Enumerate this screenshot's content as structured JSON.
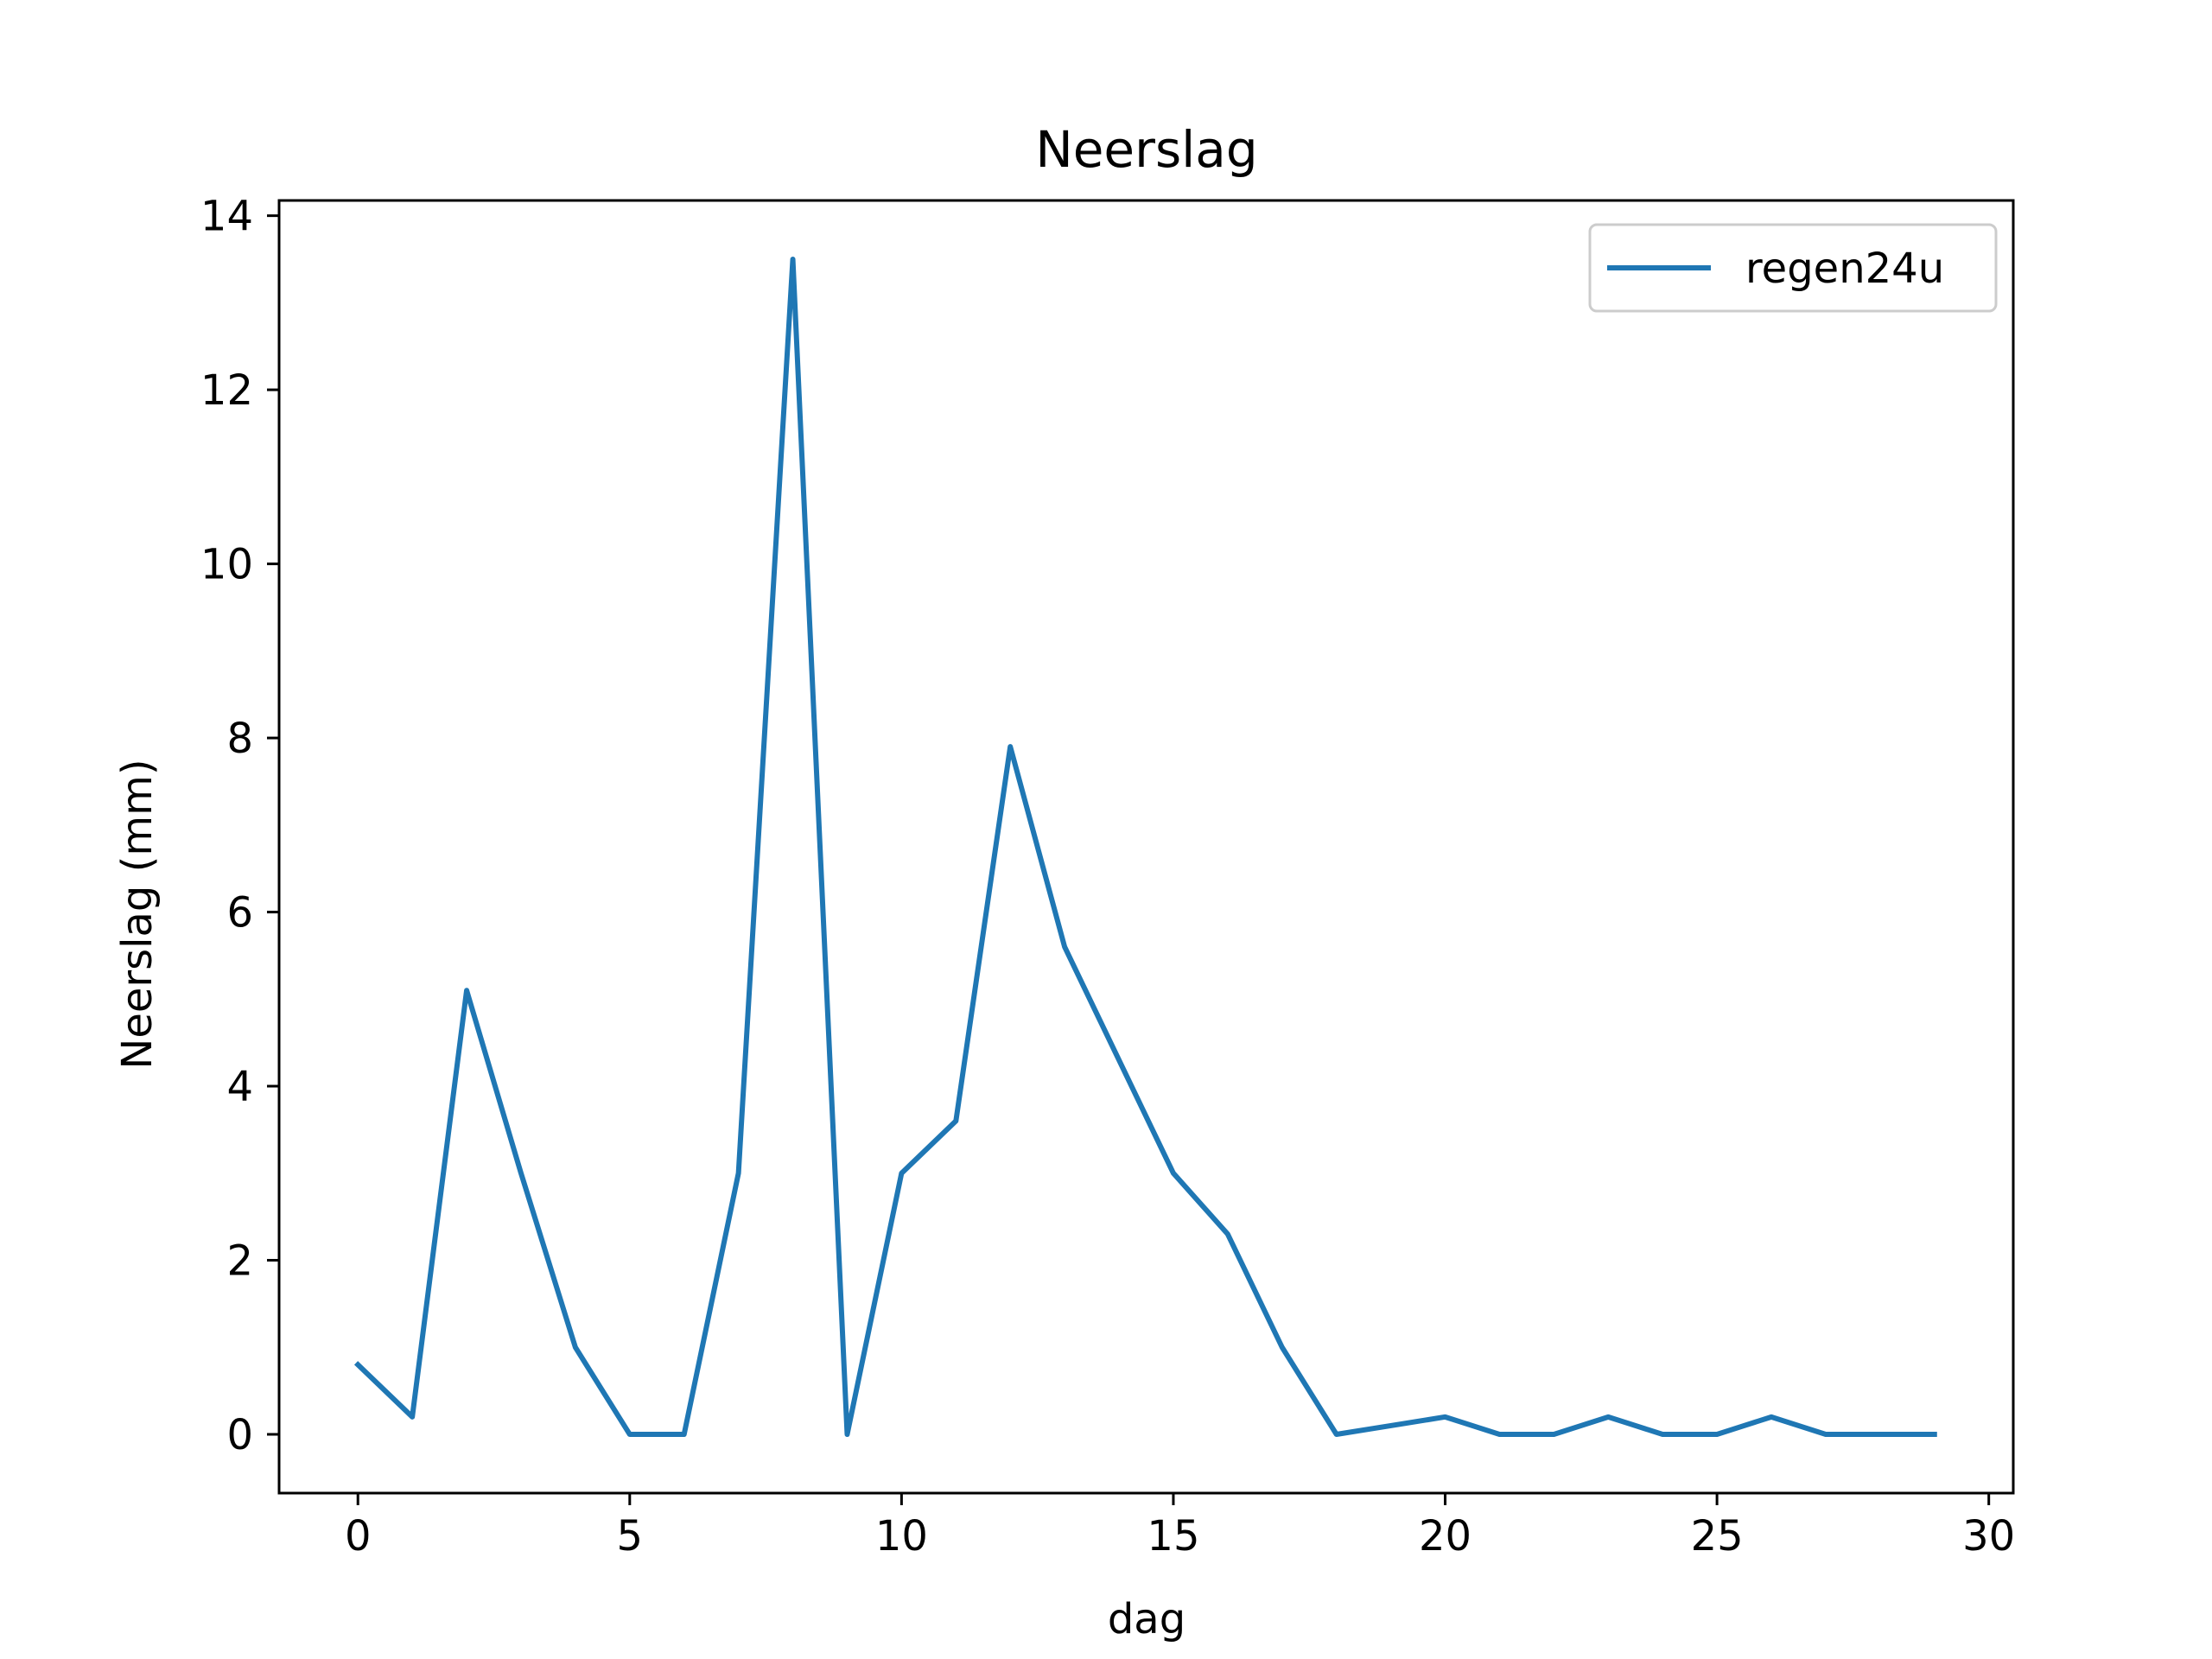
{
  "chart_data": {
    "type": "line",
    "title": "Neerslag",
    "xlabel": "dag",
    "ylabel": "Neerslag (mm)",
    "xlim": [
      -1.45,
      30.45
    ],
    "ylim": [
      -0.675,
      14.175
    ],
    "xticks": [
      0,
      5,
      10,
      15,
      20,
      25,
      30
    ],
    "yticks": [
      0,
      2,
      4,
      6,
      8,
      10,
      12,
      14
    ],
    "xtick_labels": [
      "0",
      "5",
      "10",
      "15",
      "20",
      "25",
      "30"
    ],
    "ytick_labels": [
      "0",
      "2",
      "4",
      "6",
      "8",
      "10",
      "12",
      "14"
    ],
    "grid": false,
    "legend_position": "upper right",
    "series": [
      {
        "name": "regen24u",
        "color": "#1f77b4",
        "x": [
          0,
          1,
          2,
          3,
          4,
          5,
          6,
          7,
          8,
          9,
          10,
          11,
          12,
          13,
          14,
          15,
          16,
          17,
          18,
          19,
          20,
          21,
          22,
          23,
          24,
          25,
          26,
          27,
          28,
          29
        ],
        "y": [
          0.8,
          0.2,
          5.1,
          3.0,
          1.0,
          0.0,
          0.0,
          3.0,
          13.5,
          0.0,
          3.0,
          3.6,
          7.9,
          5.6,
          4.3,
          3.0,
          2.3,
          1.0,
          0.0,
          0.1,
          0.2,
          0.0,
          0.0,
          0.2,
          0.0,
          0.0,
          0.2,
          0.0,
          0.0,
          0.0
        ]
      }
    ]
  }
}
